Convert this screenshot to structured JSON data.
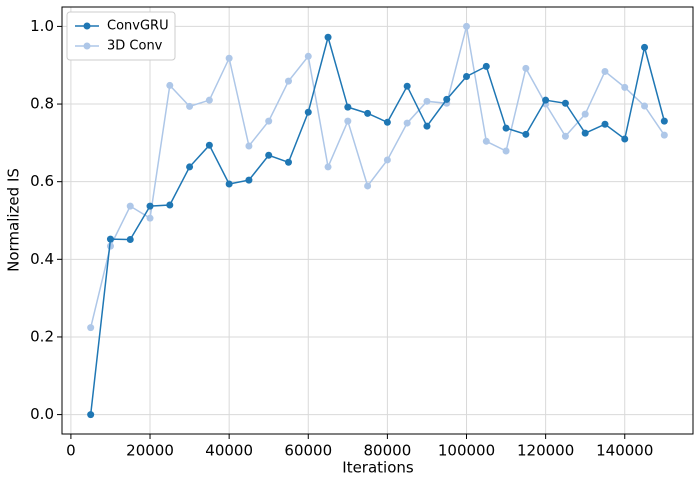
{
  "chart_data": {
    "type": "line",
    "x_label": "Iterations",
    "y_label": "Normalized IS",
    "x": [
      5000,
      10000,
      15000,
      20000,
      25000,
      30000,
      35000,
      40000,
      45000,
      50000,
      55000,
      60000,
      65000,
      70000,
      75000,
      80000,
      85000,
      90000,
      95000,
      100000,
      105000,
      110000,
      115000,
      120000,
      125000,
      130000,
      135000,
      140000,
      145000,
      150000
    ],
    "series": [
      {
        "name": "ConvGRU",
        "color": "#1f77b4",
        "values": [
          0.0,
          0.452,
          0.451,
          0.537,
          0.54,
          0.638,
          0.694,
          0.594,
          0.604,
          0.668,
          0.65,
          0.779,
          0.972,
          0.792,
          0.776,
          0.753,
          0.846,
          0.743,
          0.812,
          0.871,
          0.897,
          0.738,
          0.722,
          0.81,
          0.802,
          0.725,
          0.748,
          0.71,
          0.946,
          0.756
        ]
      },
      {
        "name": "3D Conv",
        "color": "#aec7e8",
        "values": [
          0.224,
          0.434,
          0.537,
          0.506,
          0.848,
          0.794,
          0.81,
          0.918,
          0.692,
          0.756,
          0.859,
          0.923,
          0.638,
          0.756,
          0.589,
          0.656,
          0.751,
          0.807,
          0.802,
          1.0,
          0.704,
          0.679,
          0.892,
          0.8,
          0.717,
          0.774,
          0.884,
          0.843,
          0.795,
          0.72
        ]
      }
    ],
    "xlim": [
      -2250,
      157250
    ],
    "ylim": [
      -0.05,
      1.05
    ],
    "xticks": [
      0,
      20000,
      40000,
      60000,
      80000,
      100000,
      120000,
      140000
    ],
    "yticks": [
      {
        "value": 0,
        "label": "0.0"
      },
      0.2,
      0.4,
      0.6,
      0.8,
      {
        "value": 1,
        "label": "1.0"
      }
    ],
    "grid": true,
    "legend": "upper-left"
  }
}
